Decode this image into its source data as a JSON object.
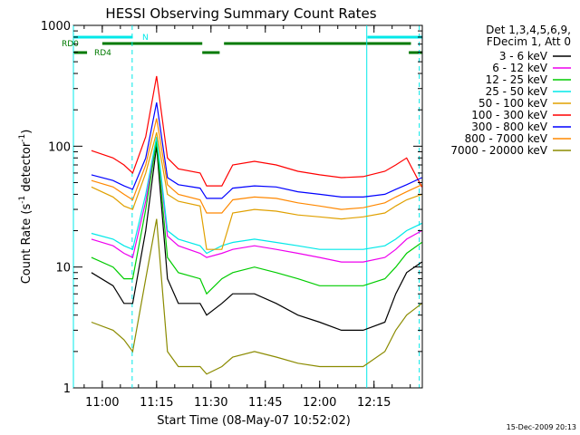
{
  "chart_data": {
    "type": "line",
    "title": "HESSI Observing Summary Count Rates",
    "xlabel": "Start Time (08-May-07 10:52:02)",
    "ylabel": "Count Rate (s",
    "ylabel_sup1": "-1",
    "ylabel_mid": " detector",
    "ylabel_sup2": "-1",
    "ylabel_end": ")",
    "y_scale": "log",
    "ylim": [
      1,
      1000
    ],
    "xlim": [
      10.8672,
      12.4722
    ],
    "x_ticks": [
      {
        "value": 11.0,
        "label": "11:00"
      },
      {
        "value": 11.25,
        "label": "11:15"
      },
      {
        "value": 11.5,
        "label": "11:30"
      },
      {
        "value": 11.75,
        "label": "11:45"
      },
      {
        "value": 12.0,
        "label": "12:00"
      },
      {
        "value": 12.25,
        "label": "12:15"
      },
      {
        "value": 12.5,
        "label": "12:30"
      }
    ],
    "y_ticks": [
      {
        "value": 1,
        "label": "1"
      },
      {
        "value": 10,
        "label": "10"
      },
      {
        "value": 100,
        "label": "100"
      },
      {
        "value": 1000,
        "label": "1000"
      }
    ],
    "legend_header": [
      "Det 1,3,4,5,6,9,",
      "FDecim 1, Att 0"
    ],
    "legend_position": "right",
    "timestamp": "15-Dec-2009 20:13",
    "flags": [
      {
        "name": "N",
        "color": "#00e8e8",
        "segments": [
          [
            10.87,
            11.14
          ],
          [
            12.22,
            12.47
          ]
        ]
      },
      {
        "name": "RD0",
        "color": "#007a00",
        "segments": [
          [
            11.0,
            11.46
          ],
          [
            11.56,
            12.42
          ]
        ]
      },
      {
        "name": "RD4",
        "color": "#007a00",
        "segments": [
          [
            10.87,
            10.93
          ],
          [
            11.46,
            11.54
          ],
          [
            12.41,
            12.47
          ]
        ]
      }
    ],
    "vlines": [
      {
        "x": 10.8672,
        "color": "#00e8e8",
        "style": "solid"
      },
      {
        "x": 11.1375,
        "color": "#00e8e8",
        "style": "dashed"
      },
      {
        "x": 12.2167,
        "color": "#00e8e8",
        "style": "solid"
      },
      {
        "x": 12.4583,
        "color": "#00e8e8",
        "style": "dashed"
      }
    ],
    "x": [
      10.95,
      11.05,
      11.1,
      11.14,
      11.2,
      11.25,
      11.3,
      11.35,
      11.45,
      11.48,
      11.55,
      11.6,
      11.7,
      11.8,
      11.9,
      12.0,
      12.1,
      12.2,
      12.3,
      12.35,
      12.4,
      12.47
    ],
    "series": [
      {
        "name": "3 - 6 keV",
        "color": "#000000",
        "values": [
          9,
          7,
          5,
          5,
          20,
          100,
          8,
          5,
          5,
          4,
          5,
          6,
          6,
          5,
          4,
          3.5,
          3,
          3,
          3.5,
          6,
          9,
          11
        ]
      },
      {
        "name": "6 - 12 keV",
        "color": "#ee00ee",
        "values": [
          17,
          15,
          13,
          12,
          35,
          115,
          18,
          15,
          13,
          12,
          13,
          14,
          15,
          14,
          13,
          12,
          11,
          11,
          12,
          14,
          17,
          20
        ]
      },
      {
        "name": "12 - 25 keV",
        "color": "#00cc00",
        "values": [
          12,
          10,
          8,
          8,
          30,
          110,
          12,
          9,
          8,
          6,
          8,
          9,
          10,
          9,
          8,
          7,
          7,
          7,
          8,
          10,
          13,
          16
        ]
      },
      {
        "name": "25 - 50 keV",
        "color": "#00e8e8",
        "values": [
          19,
          17,
          15,
          14,
          40,
          120,
          20,
          17,
          15,
          13,
          15,
          16,
          17,
          16,
          15,
          14,
          14,
          14,
          15,
          17,
          20,
          23
        ]
      },
      {
        "name": "50 - 100 keV",
        "color": "#e0a000",
        "values": [
          46,
          38,
          32,
          30,
          60,
          130,
          40,
          35,
          32,
          14,
          14,
          28,
          30,
          29,
          27,
          26,
          25,
          26,
          28,
          32,
          36,
          40
        ]
      },
      {
        "name": "100 - 300 keV",
        "color": "#ff0000",
        "values": [
          92,
          80,
          70,
          60,
          120,
          380,
          80,
          65,
          60,
          47,
          47,
          70,
          75,
          70,
          62,
          58,
          55,
          56,
          62,
          70,
          80,
          46
        ]
      },
      {
        "name": "300 - 800 keV",
        "color": "#0000ff",
        "values": [
          58,
          52,
          47,
          44,
          80,
          230,
          55,
          48,
          45,
          37,
          37,
          45,
          47,
          46,
          42,
          40,
          38,
          38,
          40,
          44,
          48,
          55
        ]
      },
      {
        "name": "800 - 7000 keV",
        "color": "#ff8800",
        "values": [
          52,
          46,
          40,
          36,
          70,
          170,
          48,
          40,
          36,
          28,
          28,
          36,
          38,
          37,
          34,
          32,
          30,
          31,
          34,
          38,
          42,
          48
        ]
      },
      {
        "name": "7000 - 20000 keV",
        "color": "#8b8b00",
        "values": [
          3.5,
          3,
          2.5,
          2,
          8,
          25,
          2,
          1.5,
          1.5,
          1.3,
          1.5,
          1.8,
          2,
          1.8,
          1.6,
          1.5,
          1.5,
          1.5,
          2,
          3,
          4,
          5
        ]
      }
    ]
  }
}
